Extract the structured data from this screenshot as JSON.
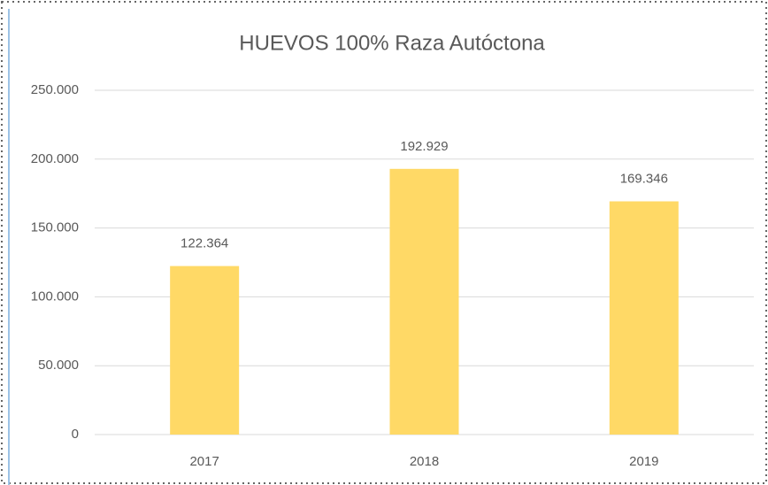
{
  "chart_data": {
    "type": "bar",
    "title": "HUEVOS 100% Raza Autóctona",
    "categories": [
      "2017",
      "2018",
      "2019"
    ],
    "values": [
      122364,
      192929,
      169346
    ],
    "value_labels": [
      "122.364",
      "192.929",
      "169.346"
    ],
    "color": "#ffd966",
    "ylim": [
      0,
      250000
    ],
    "yticks": [
      0,
      {
        "value": 50000,
        "label": "50.000"
      },
      {
        "value": 100000,
        "label": "100.000"
      },
      {
        "value": 150000,
        "label": "150.000"
      },
      {
        "value": 200000,
        "label": "200.000"
      },
      {
        "value": 250000,
        "label": "250.000"
      }
    ],
    "grid": true
  }
}
